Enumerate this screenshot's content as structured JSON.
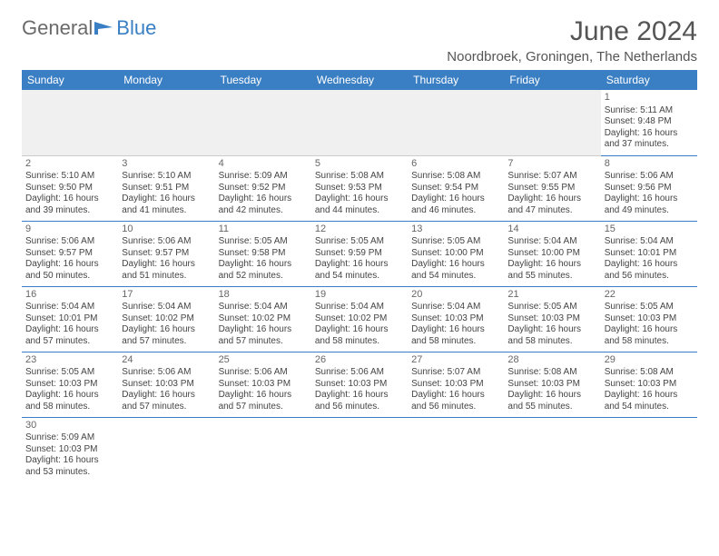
{
  "brand": {
    "part1": "General",
    "part2": "Blue",
    "logo_color": "#3a7fc4"
  },
  "title": "June 2024",
  "location": "Noordbroek, Groningen, The Netherlands",
  "colors": {
    "header_bg": "#3a7fc4",
    "header_text": "#ffffff",
    "border": "#3a7fc4",
    "empty_bg": "#f0f0f0"
  },
  "day_headers": [
    "Sunday",
    "Monday",
    "Tuesday",
    "Wednesday",
    "Thursday",
    "Friday",
    "Saturday"
  ],
  "weeks": [
    [
      null,
      null,
      null,
      null,
      null,
      null,
      {
        "n": "1",
        "sr": "Sunrise: 5:11 AM",
        "ss": "Sunset: 9:48 PM",
        "d1": "Daylight: 16 hours",
        "d2": "and 37 minutes."
      }
    ],
    [
      {
        "n": "2",
        "sr": "Sunrise: 5:10 AM",
        "ss": "Sunset: 9:50 PM",
        "d1": "Daylight: 16 hours",
        "d2": "and 39 minutes."
      },
      {
        "n": "3",
        "sr": "Sunrise: 5:10 AM",
        "ss": "Sunset: 9:51 PM",
        "d1": "Daylight: 16 hours",
        "d2": "and 41 minutes."
      },
      {
        "n": "4",
        "sr": "Sunrise: 5:09 AM",
        "ss": "Sunset: 9:52 PM",
        "d1": "Daylight: 16 hours",
        "d2": "and 42 minutes."
      },
      {
        "n": "5",
        "sr": "Sunrise: 5:08 AM",
        "ss": "Sunset: 9:53 PM",
        "d1": "Daylight: 16 hours",
        "d2": "and 44 minutes."
      },
      {
        "n": "6",
        "sr": "Sunrise: 5:08 AM",
        "ss": "Sunset: 9:54 PM",
        "d1": "Daylight: 16 hours",
        "d2": "and 46 minutes."
      },
      {
        "n": "7",
        "sr": "Sunrise: 5:07 AM",
        "ss": "Sunset: 9:55 PM",
        "d1": "Daylight: 16 hours",
        "d2": "and 47 minutes."
      },
      {
        "n": "8",
        "sr": "Sunrise: 5:06 AM",
        "ss": "Sunset: 9:56 PM",
        "d1": "Daylight: 16 hours",
        "d2": "and 49 minutes."
      }
    ],
    [
      {
        "n": "9",
        "sr": "Sunrise: 5:06 AM",
        "ss": "Sunset: 9:57 PM",
        "d1": "Daylight: 16 hours",
        "d2": "and 50 minutes."
      },
      {
        "n": "10",
        "sr": "Sunrise: 5:06 AM",
        "ss": "Sunset: 9:57 PM",
        "d1": "Daylight: 16 hours",
        "d2": "and 51 minutes."
      },
      {
        "n": "11",
        "sr": "Sunrise: 5:05 AM",
        "ss": "Sunset: 9:58 PM",
        "d1": "Daylight: 16 hours",
        "d2": "and 52 minutes."
      },
      {
        "n": "12",
        "sr": "Sunrise: 5:05 AM",
        "ss": "Sunset: 9:59 PM",
        "d1": "Daylight: 16 hours",
        "d2": "and 54 minutes."
      },
      {
        "n": "13",
        "sr": "Sunrise: 5:05 AM",
        "ss": "Sunset: 10:00 PM",
        "d1": "Daylight: 16 hours",
        "d2": "and 54 minutes."
      },
      {
        "n": "14",
        "sr": "Sunrise: 5:04 AM",
        "ss": "Sunset: 10:00 PM",
        "d1": "Daylight: 16 hours",
        "d2": "and 55 minutes."
      },
      {
        "n": "15",
        "sr": "Sunrise: 5:04 AM",
        "ss": "Sunset: 10:01 PM",
        "d1": "Daylight: 16 hours",
        "d2": "and 56 minutes."
      }
    ],
    [
      {
        "n": "16",
        "sr": "Sunrise: 5:04 AM",
        "ss": "Sunset: 10:01 PM",
        "d1": "Daylight: 16 hours",
        "d2": "and 57 minutes."
      },
      {
        "n": "17",
        "sr": "Sunrise: 5:04 AM",
        "ss": "Sunset: 10:02 PM",
        "d1": "Daylight: 16 hours",
        "d2": "and 57 minutes."
      },
      {
        "n": "18",
        "sr": "Sunrise: 5:04 AM",
        "ss": "Sunset: 10:02 PM",
        "d1": "Daylight: 16 hours",
        "d2": "and 57 minutes."
      },
      {
        "n": "19",
        "sr": "Sunrise: 5:04 AM",
        "ss": "Sunset: 10:02 PM",
        "d1": "Daylight: 16 hours",
        "d2": "and 58 minutes."
      },
      {
        "n": "20",
        "sr": "Sunrise: 5:04 AM",
        "ss": "Sunset: 10:03 PM",
        "d1": "Daylight: 16 hours",
        "d2": "and 58 minutes."
      },
      {
        "n": "21",
        "sr": "Sunrise: 5:05 AM",
        "ss": "Sunset: 10:03 PM",
        "d1": "Daylight: 16 hours",
        "d2": "and 58 minutes."
      },
      {
        "n": "22",
        "sr": "Sunrise: 5:05 AM",
        "ss": "Sunset: 10:03 PM",
        "d1": "Daylight: 16 hours",
        "d2": "and 58 minutes."
      }
    ],
    [
      {
        "n": "23",
        "sr": "Sunrise: 5:05 AM",
        "ss": "Sunset: 10:03 PM",
        "d1": "Daylight: 16 hours",
        "d2": "and 58 minutes."
      },
      {
        "n": "24",
        "sr": "Sunrise: 5:06 AM",
        "ss": "Sunset: 10:03 PM",
        "d1": "Daylight: 16 hours",
        "d2": "and 57 minutes."
      },
      {
        "n": "25",
        "sr": "Sunrise: 5:06 AM",
        "ss": "Sunset: 10:03 PM",
        "d1": "Daylight: 16 hours",
        "d2": "and 57 minutes."
      },
      {
        "n": "26",
        "sr": "Sunrise: 5:06 AM",
        "ss": "Sunset: 10:03 PM",
        "d1": "Daylight: 16 hours",
        "d2": "and 56 minutes."
      },
      {
        "n": "27",
        "sr": "Sunrise: 5:07 AM",
        "ss": "Sunset: 10:03 PM",
        "d1": "Daylight: 16 hours",
        "d2": "and 56 minutes."
      },
      {
        "n": "28",
        "sr": "Sunrise: 5:08 AM",
        "ss": "Sunset: 10:03 PM",
        "d1": "Daylight: 16 hours",
        "d2": "and 55 minutes."
      },
      {
        "n": "29",
        "sr": "Sunrise: 5:08 AM",
        "ss": "Sunset: 10:03 PM",
        "d1": "Daylight: 16 hours",
        "d2": "and 54 minutes."
      }
    ],
    [
      {
        "n": "30",
        "sr": "Sunrise: 5:09 AM",
        "ss": "Sunset: 10:03 PM",
        "d1": "Daylight: 16 hours",
        "d2": "and 53 minutes."
      },
      null,
      null,
      null,
      null,
      null,
      null
    ]
  ]
}
